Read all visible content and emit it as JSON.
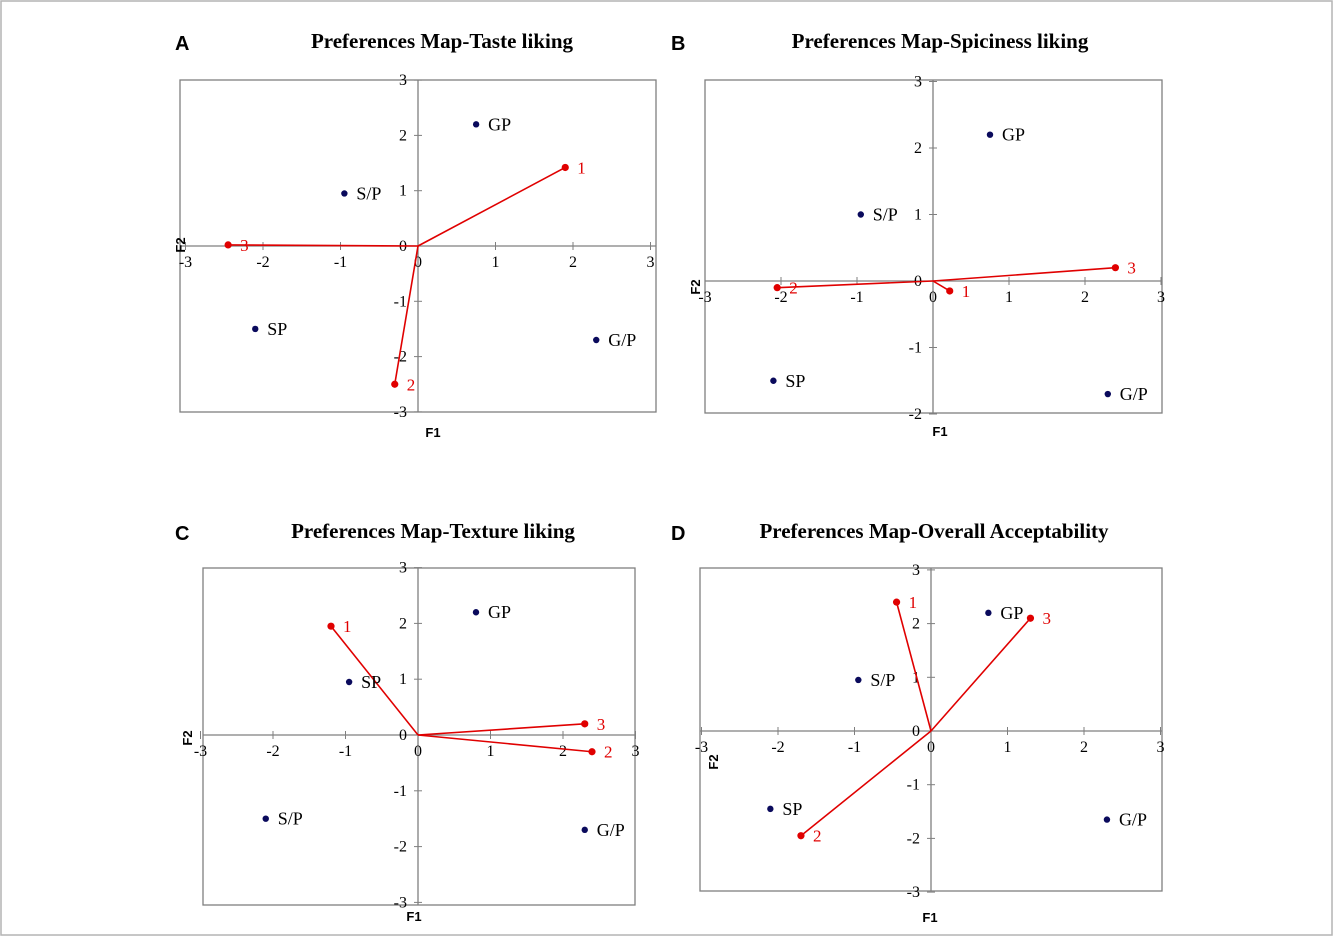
{
  "chart_data": [
    {
      "type": "scatter",
      "panel_letter": "A",
      "title": "Preferences Map-Taste liking",
      "xlabel": "F1",
      "ylabel": "F2",
      "xlim": [
        -3,
        3
      ],
      "ylim": [
        -3,
        3
      ],
      "xticks": [
        -3,
        -2,
        -1,
        0,
        1,
        2,
        3
      ],
      "yticks": [
        -3,
        -2,
        -1,
        0,
        1,
        2,
        3
      ],
      "grid": false,
      "observations": [
        {
          "label": "GP",
          "x": 0.75,
          "y": 2.2
        },
        {
          "label": "S/P",
          "x": -0.95,
          "y": 0.95
        },
        {
          "label": "SP",
          "x": -2.1,
          "y": -1.5
        },
        {
          "label": "G/P",
          "x": 2.3,
          "y": -1.7
        }
      ],
      "variables": [
        {
          "label": "1",
          "x": 1.9,
          "y": 1.42
        },
        {
          "label": "2",
          "x": -0.3,
          "y": -2.5
        },
        {
          "label": "3",
          "x": -2.45,
          "y": 0.02
        }
      ],
      "colors": {
        "observations": "#0a0a5c",
        "variables": "#e00000"
      }
    },
    {
      "type": "scatter",
      "panel_letter": "B",
      "title": "Preferences Map-Spiciness liking",
      "xlabel": "F1",
      "ylabel": "F2",
      "xlim": [
        -3,
        3
      ],
      "ylim": [
        -2,
        3
      ],
      "xticks": [
        -3,
        -2,
        -1,
        0,
        1,
        2,
        3
      ],
      "yticks": [
        -2,
        -1,
        0,
        1,
        2,
        3
      ],
      "grid": false,
      "observations": [
        {
          "label": "GP",
          "x": 0.75,
          "y": 2.2
        },
        {
          "label": "S/P",
          "x": -0.95,
          "y": 1.0
        },
        {
          "label": "SP",
          "x": -2.1,
          "y": -1.5
        },
        {
          "label": "G/P",
          "x": 2.3,
          "y": -1.7
        }
      ],
      "variables": [
        {
          "label": "1",
          "x": 0.22,
          "y": -0.15
        },
        {
          "label": "2",
          "x": -2.05,
          "y": -0.1
        },
        {
          "label": "3",
          "x": 2.4,
          "y": 0.2
        }
      ],
      "colors": {
        "observations": "#0a0a5c",
        "variables": "#e00000"
      }
    },
    {
      "type": "scatter",
      "panel_letter": "C",
      "title": "Preferences Map-Texture liking",
      "xlabel": "F1",
      "ylabel": "F2",
      "xlim": [
        -3,
        3
      ],
      "ylim": [
        -3,
        3
      ],
      "xticks": [
        -3,
        -2,
        -1,
        0,
        1,
        2,
        3
      ],
      "yticks": [
        -3,
        -2,
        -1,
        0,
        1,
        2,
        3
      ],
      "grid": false,
      "observations": [
        {
          "label": "GP",
          "x": 0.8,
          "y": 2.2
        },
        {
          "label": "SP",
          "x": -0.95,
          "y": 0.95
        },
        {
          "label": "S/P",
          "x": -2.1,
          "y": -1.5
        },
        {
          "label": "G/P",
          "x": 2.3,
          "y": -1.7
        }
      ],
      "variables": [
        {
          "label": "1",
          "x": -1.2,
          "y": 1.95
        },
        {
          "label": "2",
          "x": 2.4,
          "y": -0.3
        },
        {
          "label": "3",
          "x": 2.3,
          "y": 0.2
        }
      ],
      "colors": {
        "observations": "#0a0a5c",
        "variables": "#e00000"
      }
    },
    {
      "type": "scatter",
      "panel_letter": "D",
      "title": "Preferences Map-Overall Acceptability",
      "xlabel": "F1",
      "ylabel": "F2",
      "xlim": [
        -3,
        3
      ],
      "ylim": [
        -3,
        3
      ],
      "xticks": [
        -3,
        -2,
        -1,
        0,
        1,
        2,
        3
      ],
      "yticks": [
        -3,
        -2,
        -1,
        0,
        1,
        2,
        3
      ],
      "grid": false,
      "observations": [
        {
          "label": "GP",
          "x": 0.75,
          "y": 2.2
        },
        {
          "label": "S/P",
          "x": -0.95,
          "y": 0.95
        },
        {
          "label": "SP",
          "x": -2.1,
          "y": -1.45
        },
        {
          "label": "G/P",
          "x": 2.3,
          "y": -1.65
        }
      ],
      "variables": [
        {
          "label": "1",
          "x": -0.45,
          "y": 2.4
        },
        {
          "label": "2",
          "x": -1.7,
          "y": -1.95
        },
        {
          "label": "3",
          "x": 1.3,
          "y": 2.1
        }
      ],
      "colors": {
        "observations": "#0a0a5c",
        "variables": "#e00000"
      }
    }
  ]
}
